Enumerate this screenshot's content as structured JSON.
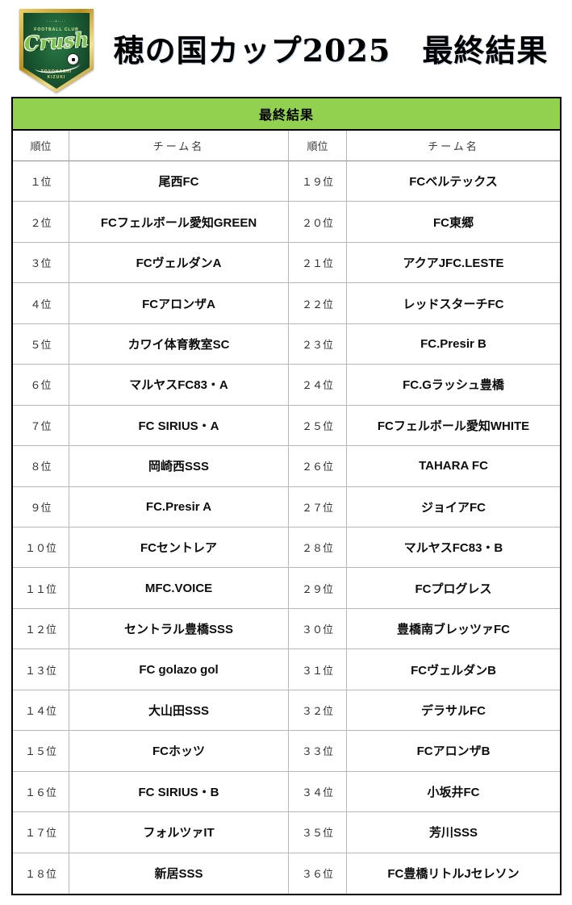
{
  "header": {
    "title": "穂の国カップ2025　最終結果",
    "logo": {
      "club_line": "FOOTBALL CLUB",
      "main": "Crush",
      "bottom1": "TOYOHASHI",
      "bottom2": "KIZUKI"
    }
  },
  "table": {
    "caption": "最終結果",
    "columns": [
      "順位",
      "チーム名",
      "順位",
      "チーム名"
    ],
    "rows": [
      [
        "１位",
        "尾西FC",
        "１９位",
        "FCベルテックス"
      ],
      [
        "２位",
        "FCフェルボール愛知GREEN",
        "２０位",
        "FC東郷"
      ],
      [
        "３位",
        "FCヴェルダンA",
        "２１位",
        "アクアJFC.LESTE"
      ],
      [
        "４位",
        "FCアロンザA",
        "２２位",
        "レッドスターチFC"
      ],
      [
        "５位",
        "カワイ体育教室SC",
        "２３位",
        "FC.Presir B"
      ],
      [
        "６位",
        "マルヤスFC83・A",
        "２４位",
        "FC.Gラッシュ豊橋"
      ],
      [
        "７位",
        "FC SIRIUS・A",
        "２５位",
        "FCフェルボール愛知WHITE"
      ],
      [
        "８位",
        "岡崎西SSS",
        "２６位",
        "TAHARA FC"
      ],
      [
        "９位",
        "FC.Presir A",
        "２７位",
        "ジョイアFC"
      ],
      [
        "１０位",
        "FCセントレア",
        "２８位",
        "マルヤスFC83・B"
      ],
      [
        "１１位",
        "MFC.VOICE",
        "２９位",
        "FCプログレス"
      ],
      [
        "１２位",
        "セントラル豊橋SSS",
        "３０位",
        "豊橋南ブレッツァFC"
      ],
      [
        "１３位",
        "FC golazo gol",
        "３１位",
        "FCヴェルダンB"
      ],
      [
        "１４位",
        "大山田SSS",
        "３２位",
        "デラサルFC"
      ],
      [
        "１５位",
        "FCホッツ",
        "３３位",
        "FCアロンザB"
      ],
      [
        "１６位",
        "FC SIRIUS・B",
        "３４位",
        "小坂井FC"
      ],
      [
        "１７位",
        "フォルツァIT",
        "３５位",
        "芳川SSS"
      ],
      [
        "１８位",
        "新居SSS",
        "３６位",
        "FC豊橋リトルJセレソン"
      ]
    ]
  },
  "colors": {
    "caption_green": "#92d050",
    "logo_dark_green": "#14492a",
    "logo_gold": "#b9901f",
    "grid_line": "#b7b7b7"
  }
}
